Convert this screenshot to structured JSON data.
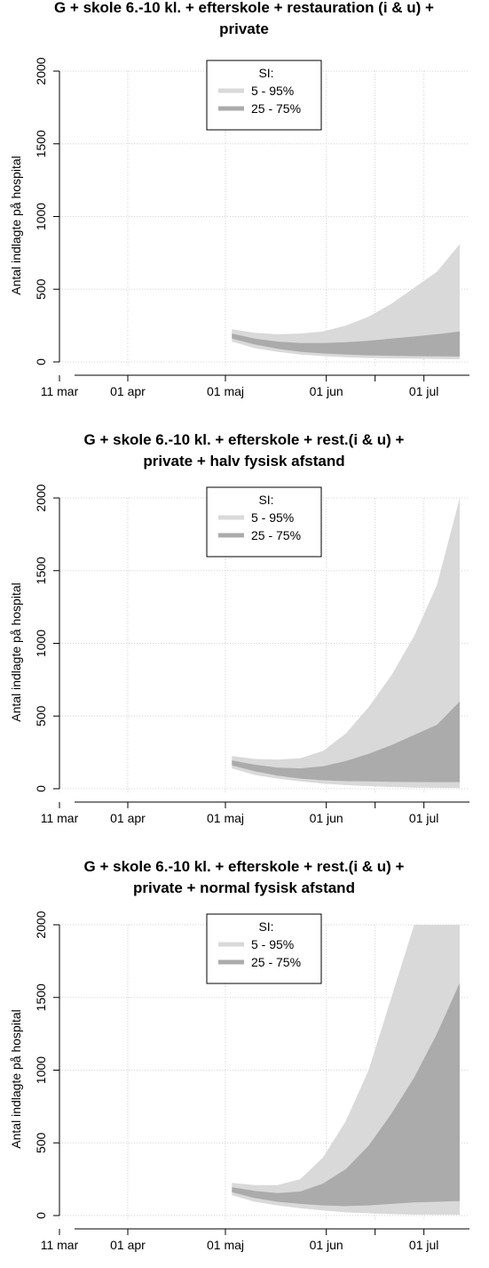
{
  "chart_data": [
    {
      "type": "area",
      "title_lines": [
        "G + skole 6.-10 kl. + efterskole + restauration (i & u) +",
        "private"
      ],
      "ylabel": "Antal indlagte på hospital",
      "ylim": [
        0,
        2000
      ],
      "yticks": [
        "0",
        "500",
        "1000",
        "1500",
        "2000"
      ],
      "xlim": [
        "2020-03-11",
        "2020-07-15"
      ],
      "xticks": [
        {
          "date": "2020-03-11",
          "label": "11 mar"
        },
        {
          "date": "2020-04-01",
          "label": "01 apr"
        },
        {
          "date": "2020-05-01",
          "label": "01 maj"
        },
        {
          "date": "2020-06-01",
          "label": "01 jun"
        },
        {
          "date": "2020-07-01",
          "label": "01 jul"
        }
      ],
      "grid": true,
      "legend": {
        "title": "SI:",
        "position": "top",
        "entries": [
          {
            "label": "5 - 95%",
            "color": "#d9d9d9"
          },
          {
            "label": "25 - 75%",
            "color": "#ababab"
          }
        ]
      },
      "x": [
        "2020-05-03",
        "2020-05-10",
        "2020-05-17",
        "2020-05-24",
        "2020-05-31",
        "2020-06-07",
        "2020-06-14",
        "2020-06-21",
        "2020-06-28",
        "2020-07-05",
        "2020-07-12"
      ],
      "series": [
        {
          "name": "5 - 95%",
          "color": "#d9d9d9",
          "low": [
            140,
            95,
            70,
            50,
            40,
            32,
            27,
            24,
            22,
            20,
            19
          ],
          "high": [
            225,
            200,
            190,
            195,
            210,
            250,
            310,
            400,
            510,
            620,
            810
          ]
        },
        {
          "name": "25 - 75%",
          "color": "#ababab",
          "low": [
            160,
            120,
            90,
            70,
            58,
            50,
            45,
            42,
            40,
            38,
            37
          ],
          "high": [
            195,
            160,
            140,
            130,
            130,
            135,
            145,
            160,
            175,
            190,
            210
          ]
        }
      ]
    },
    {
      "type": "area",
      "title_lines": [
        "G + skole 6.-10 kl. + efterskole + rest.(i & u) +",
        "private + halv fysisk afstand"
      ],
      "ylabel": "Antal indlagte på hospital",
      "ylim": [
        0,
        2000
      ],
      "yticks": [
        "0",
        "500",
        "1000",
        "1500",
        "2000"
      ],
      "xlim": [
        "2020-03-11",
        "2020-07-15"
      ],
      "xticks": [
        {
          "date": "2020-03-11",
          "label": "11 mar"
        },
        {
          "date": "2020-04-01",
          "label": "01 apr"
        },
        {
          "date": "2020-05-01",
          "label": "01 maj"
        },
        {
          "date": "2020-06-01",
          "label": "01 jun"
        },
        {
          "date": "2020-07-01",
          "label": "01 jul"
        }
      ],
      "grid": true,
      "legend": {
        "title": "SI:",
        "position": "top",
        "entries": [
          {
            "label": "5 - 95%",
            "color": "#d9d9d9"
          },
          {
            "label": "25 - 75%",
            "color": "#ababab"
          }
        ]
      },
      "x": [
        "2020-05-03",
        "2020-05-10",
        "2020-05-17",
        "2020-05-24",
        "2020-05-31",
        "2020-06-07",
        "2020-06-14",
        "2020-06-21",
        "2020-06-28",
        "2020-07-05",
        "2020-07-12"
      ],
      "series": [
        {
          "name": "5 - 95%",
          "color": "#d9d9d9",
          "low": [
            140,
            95,
            70,
            50,
            35,
            25,
            18,
            12,
            8,
            6,
            5
          ],
          "high": [
            225,
            205,
            200,
            210,
            260,
            380,
            560,
            780,
            1050,
            1400,
            2000
          ]
        },
        {
          "name": "25 - 75%",
          "color": "#ababab",
          "low": [
            160,
            120,
            90,
            70,
            58,
            52,
            50,
            48,
            46,
            45,
            45
          ],
          "high": [
            195,
            165,
            145,
            140,
            155,
            190,
            240,
            300,
            370,
            440,
            600
          ]
        }
      ]
    },
    {
      "type": "area",
      "title_lines": [
        "G + skole 6.-10 kl. + efterskole + rest.(i & u) +",
        "private + normal fysisk afstand"
      ],
      "ylabel": "Antal indlagte på hospital",
      "ylim": [
        0,
        2000
      ],
      "yticks": [
        "0",
        "500",
        "1000",
        "1500",
        "2000"
      ],
      "xlim": [
        "2020-03-11",
        "2020-07-15"
      ],
      "xticks": [
        {
          "date": "2020-03-11",
          "label": "11 mar"
        },
        {
          "date": "2020-04-01",
          "label": "01 apr"
        },
        {
          "date": "2020-05-01",
          "label": "01 maj"
        },
        {
          "date": "2020-06-01",
          "label": "01 jun"
        },
        {
          "date": "2020-07-01",
          "label": "01 jul"
        }
      ],
      "grid": true,
      "legend": {
        "title": "SI:",
        "position": "top",
        "entries": [
          {
            "label": "5 - 95%",
            "color": "#d9d9d9"
          },
          {
            "label": "25 - 75%",
            "color": "#ababab"
          }
        ]
      },
      "x": [
        "2020-05-03",
        "2020-05-10",
        "2020-05-17",
        "2020-05-24",
        "2020-05-31",
        "2020-06-07",
        "2020-06-14",
        "2020-06-21",
        "2020-06-28",
        "2020-07-05",
        "2020-07-12"
      ],
      "series": [
        {
          "name": "5 - 95%",
          "color": "#d9d9d9",
          "low": [
            140,
            95,
            70,
            50,
            35,
            22,
            15,
            10,
            6,
            5,
            5
          ],
          "high": [
            225,
            210,
            210,
            250,
            400,
            650,
            1000,
            1500,
            2000,
            2000,
            2000
          ]
        },
        {
          "name": "25 - 75%",
          "color": "#ababab",
          "low": [
            160,
            120,
            95,
            80,
            70,
            65,
            70,
            80,
            90,
            95,
            100
          ],
          "high": [
            195,
            170,
            155,
            165,
            220,
            320,
            480,
            700,
            950,
            1250,
            1600
          ]
        }
      ]
    }
  ]
}
